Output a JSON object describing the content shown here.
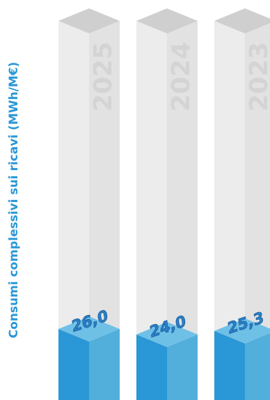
{
  "chart_data": {
    "type": "bar",
    "ylabel": "Consumi complessivi sui ricavi (MWh/M€)",
    "xlabel": "",
    "title": "",
    "categories": [
      "2025",
      "2024",
      "2023"
    ],
    "values": [
      26.0,
      24.0,
      25.3
    ],
    "value_labels": [
      "26,0",
      "24,0",
      "25,3"
    ],
    "ylim": [
      0,
      100
    ],
    "grid": false,
    "legend": "none",
    "colors": {
      "bar_front": "#2a97d6",
      "bar_side": "#52aeda",
      "bar_top": "#6fc0e7",
      "track_front": "#ececec",
      "track_side": "#e2e2e2",
      "track_top": "#cfcfcf",
      "year_text": "#d4d4d4",
      "value_text": "#2a7fc8",
      "axis_label": "#2a97d6"
    }
  }
}
